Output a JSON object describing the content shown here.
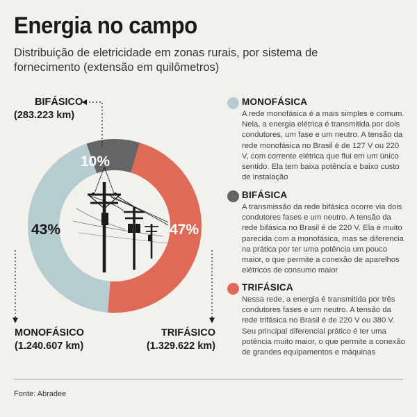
{
  "header": {
    "title": "Energia no campo",
    "subtitle": "Distribuição de eletricidade em zonas rurais, por sistema de fornecimento (extensão em quilômetros)"
  },
  "chart_data": {
    "type": "pie",
    "title": "Energia no campo",
    "categories": [
      "BIFÁSICO",
      "TRIFÁSICO",
      "MONOFÁSICO"
    ],
    "values_km": [
      283223,
      1329622,
      1240607
    ],
    "percent_labels": [
      "10%",
      "47%",
      "43%"
    ],
    "values_km_labels": [
      "(283.223 km)",
      "(1.329.622 km)",
      "(1.240.607 km)"
    ],
    "colors": [
      "#656565",
      "#e06a58",
      "#b5ccd1"
    ],
    "center_illustration": "power-poles-icon"
  },
  "legend": [
    {
      "name": "MONOFÁSICA",
      "color": "#b5ccd1",
      "desc": "A rede monofásica é a mais simples e comum. Nela, a energia elétrica é transmitida por dois condutores, um fase e um neutro. A tensão da rede monofásica no Brasil é de 127 V ou 220 V, com corrente elétrica que flui em um único sentido. Ela tem baixa potência e baixo custo de instalação"
    },
    {
      "name": "BIFÁSICA",
      "color": "#656565",
      "desc": "A transmissão da rede bifásica ocorre via dois condutores fases e um neutro. A tensão da rede bifásica no Brasil é de 220 V. Ela é muito parecida com a monofásica, mas se diferencia na prática por ter uma potência um pouco maior, o que permite a conexão de aparelhos elétricos de consumo maior"
    },
    {
      "name": "TRIFÁSICA",
      "color": "#e06a58",
      "desc": "Nessa rede, a energia é transmitida por três condutores fases e um neutro. A tensão da rede trifásica no Brasil é de 220 V ou 380 V. Seu principal diferencial prático é ter uma potência muito maior, o que permite a conexão de grandes equipamentos e máquinas"
    }
  ],
  "footer": {
    "source": "Fonte: Abradee"
  }
}
